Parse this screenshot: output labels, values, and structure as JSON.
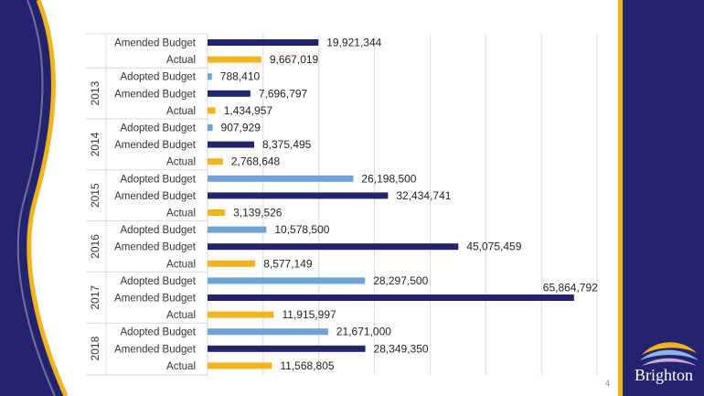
{
  "slide": {
    "page_number": "4",
    "logo_text": "Brighton",
    "colors": {
      "navy": "#24246e",
      "gold": "#f0b41e",
      "light_blue": "#6fa3d6"
    }
  },
  "chart_data": {
    "type": "bar",
    "orientation": "horizontal",
    "grid": true,
    "xlim": [
      0,
      70000000
    ],
    "groups": [
      {
        "year": "",
        "bars": [
          {
            "label": "Amended Budget",
            "value": 19921344,
            "value_label": "19,921,344",
            "color": "#24246e"
          },
          {
            "label": "Actual",
            "value": 9667019,
            "value_label": "9,667,019",
            "color": "#f0b41e"
          }
        ]
      },
      {
        "year": "2013",
        "bars": [
          {
            "label": "Adopted Budget",
            "value": 788410,
            "value_label": "788,410",
            "color": "#6fa3d6"
          },
          {
            "label": "Amended Budget",
            "value": 7696797,
            "value_label": "7,696,797",
            "color": "#24246e"
          },
          {
            "label": "Actual",
            "value": 1434957,
            "value_label": "1,434,957",
            "color": "#f0b41e"
          }
        ]
      },
      {
        "year": "2014",
        "bars": [
          {
            "label": "Adopted Budget",
            "value": 907929,
            "value_label": "907,929",
            "color": "#6fa3d6"
          },
          {
            "label": "Amended Budget",
            "value": 8375495,
            "value_label": "8,375,495",
            "color": "#24246e"
          },
          {
            "label": "Actual",
            "value": 2768648,
            "value_label": "2,768,648",
            "color": "#f0b41e"
          }
        ]
      },
      {
        "year": "2015",
        "bars": [
          {
            "label": "Adopted Budget",
            "value": 26198500,
            "value_label": "26,198,500",
            "color": "#6fa3d6"
          },
          {
            "label": "Amended Budget",
            "value": 32434741,
            "value_label": "32,434,741",
            "color": "#24246e"
          },
          {
            "label": "Actual",
            "value": 3139526,
            "value_label": "3,139,526",
            "color": "#f0b41e"
          }
        ]
      },
      {
        "year": "2016",
        "bars": [
          {
            "label": "Adopted Budget",
            "value": 10578500,
            "value_label": "10,578,500",
            "color": "#6fa3d6"
          },
          {
            "label": "Amended Budget",
            "value": 45075459,
            "value_label": "45,075,459",
            "color": "#24246e"
          },
          {
            "label": "Actual",
            "value": 8577149,
            "value_label": "8,577,149",
            "color": "#f0b41e"
          }
        ]
      },
      {
        "year": "2017",
        "bars": [
          {
            "label": "Adopted Budget",
            "value": 28297500,
            "value_label": "28,297,500",
            "color": "#6fa3d6"
          },
          {
            "label": "Amended Budget",
            "value": 65864792,
            "value_label": "65,864,792",
            "color": "#24246e"
          },
          {
            "label": "Actual",
            "value": 11915997,
            "value_label": "11,915,997",
            "color": "#f0b41e"
          }
        ]
      },
      {
        "year": "2018",
        "bars": [
          {
            "label": "Adopted Budget",
            "value": 21671000,
            "value_label": "21,671,000",
            "color": "#6fa3d6"
          },
          {
            "label": "Amended Budget",
            "value": 28349350,
            "value_label": "28,349,350",
            "color": "#24246e"
          },
          {
            "label": "Actual",
            "value": 11568805,
            "value_label": "11,568,805",
            "color": "#f0b41e"
          }
        ]
      }
    ]
  }
}
